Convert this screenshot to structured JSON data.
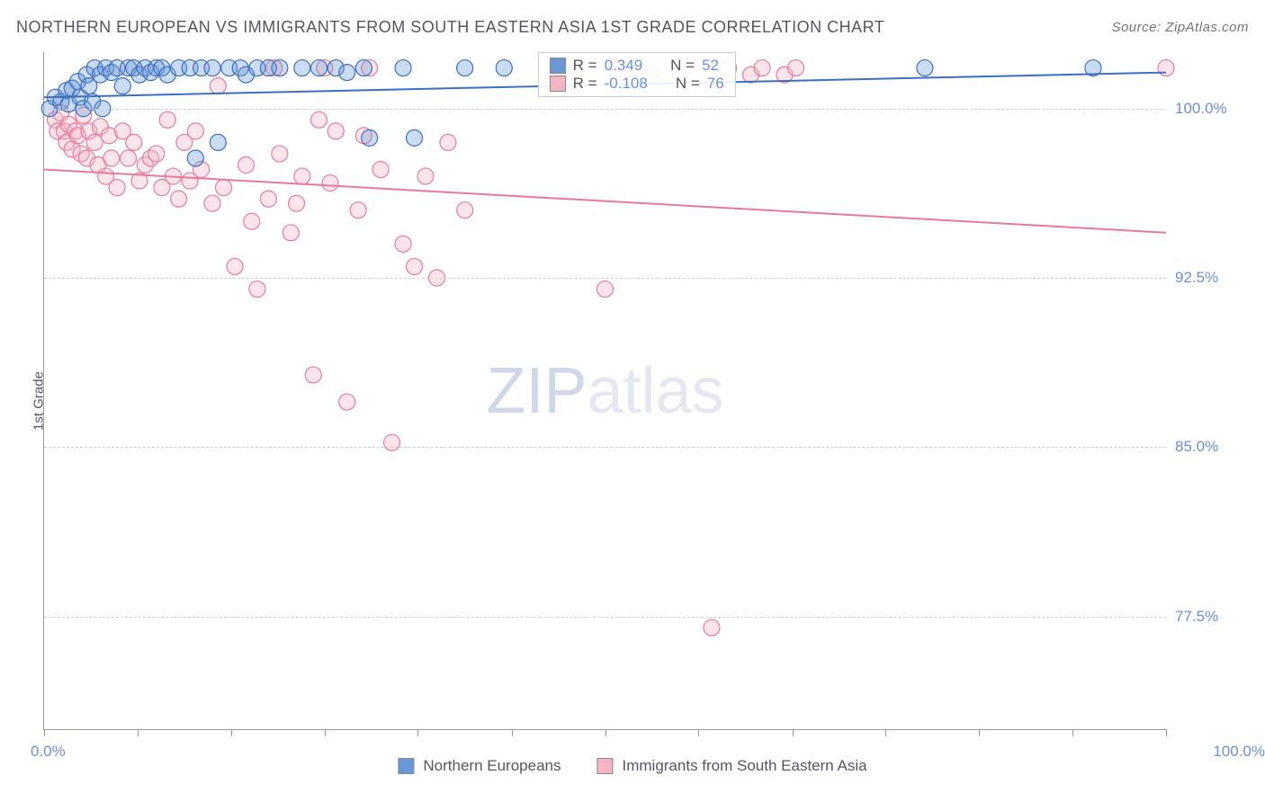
{
  "title": "NORTHERN EUROPEAN VS IMMIGRANTS FROM SOUTH EASTERN ASIA 1ST GRADE CORRELATION CHART",
  "source_label": "Source: ZipAtlas.com",
  "y_axis_label": "1st Grade",
  "watermark_a": "ZIP",
  "watermark_b": "atlas",
  "chart": {
    "type": "scatter",
    "xlim": [
      0,
      100
    ],
    "ylim": [
      72.5,
      102.5
    ],
    "x_origin_label": "0.0%",
    "x_max_label": "100.0%",
    "xtick_positions": [
      0,
      8.3,
      16.7,
      25,
      33.3,
      41.7,
      50,
      58.3,
      66.7,
      75,
      83.3,
      91.7,
      100
    ],
    "yticks": [
      {
        "value": 100.0,
        "label": "100.0%"
      },
      {
        "value": 92.5,
        "label": "92.5%"
      },
      {
        "value": 85.0,
        "label": "85.0%"
      },
      {
        "value": 77.5,
        "label": "77.5%"
      }
    ],
    "grid_color": "#cccccc",
    "axis_color": "#999999",
    "background_color": "#ffffff",
    "marker_radius": 9,
    "marker_stroke_width": 1.2,
    "marker_fill_opacity": 0.35,
    "trend_line_width": 2
  },
  "series": {
    "blue": {
      "label": "Northern Europeans",
      "fill_color": "#6b97d6",
      "stroke_color": "#3b6fc0",
      "R_label": "R =",
      "R_value": "0.349",
      "N_label": "N =",
      "N_value": "52",
      "trend": {
        "x1": 0,
        "y1": 100.5,
        "x2": 100,
        "y2": 101.6
      },
      "points": [
        [
          0.5,
          100.0
        ],
        [
          1.0,
          100.5
        ],
        [
          1.5,
          100.3
        ],
        [
          2.0,
          100.8
        ],
        [
          2.2,
          100.2
        ],
        [
          2.5,
          100.9
        ],
        [
          3.0,
          101.2
        ],
        [
          3.2,
          100.5
        ],
        [
          3.5,
          100.0
        ],
        [
          3.8,
          101.5
        ],
        [
          4.0,
          101.0
        ],
        [
          4.3,
          100.3
        ],
        [
          4.5,
          101.8
        ],
        [
          5.0,
          101.5
        ],
        [
          5.2,
          100.0
        ],
        [
          5.5,
          101.8
        ],
        [
          6.0,
          101.6
        ],
        [
          6.5,
          101.8
        ],
        [
          7.0,
          101.0
        ],
        [
          7.5,
          101.8
        ],
        [
          8.0,
          101.8
        ],
        [
          8.5,
          101.5
        ],
        [
          9.0,
          101.8
        ],
        [
          9.5,
          101.6
        ],
        [
          10.0,
          101.8
        ],
        [
          10.5,
          101.8
        ],
        [
          11.0,
          101.5
        ],
        [
          12.0,
          101.8
        ],
        [
          13.0,
          101.8
        ],
        [
          13.5,
          97.8
        ],
        [
          14.0,
          101.8
        ],
        [
          15.0,
          101.8
        ],
        [
          15.5,
          98.5
        ],
        [
          16.5,
          101.8
        ],
        [
          17.5,
          101.8
        ],
        [
          18.0,
          101.5
        ],
        [
          19.0,
          101.8
        ],
        [
          20.0,
          101.8
        ],
        [
          21.0,
          101.8
        ],
        [
          23.0,
          101.8
        ],
        [
          24.5,
          101.8
        ],
        [
          26.0,
          101.8
        ],
        [
          27.0,
          101.6
        ],
        [
          28.5,
          101.8
        ],
        [
          29.0,
          98.7
        ],
        [
          32.0,
          101.8
        ],
        [
          33.0,
          98.7
        ],
        [
          37.5,
          101.8
        ],
        [
          41.0,
          101.8
        ],
        [
          46.0,
          101.8
        ],
        [
          78.5,
          101.8
        ],
        [
          93.5,
          101.8
        ]
      ]
    },
    "pink": {
      "label": "Immigrants from South Eastern Asia",
      "fill_color": "#f4b5c5",
      "stroke_color": "#e67a9c",
      "R_label": "R =",
      "R_value": "-0.108",
      "N_label": "N =",
      "N_value": "76",
      "trend": {
        "x1": 0,
        "y1": 97.3,
        "x2": 100,
        "y2": 94.5
      },
      "points": [
        [
          1.0,
          99.5
        ],
        [
          1.2,
          99.0
        ],
        [
          1.5,
          99.8
        ],
        [
          1.8,
          99.0
        ],
        [
          2.0,
          98.5
        ],
        [
          2.2,
          99.3
        ],
        [
          2.5,
          98.2
        ],
        [
          2.8,
          99.0
        ],
        [
          3.0,
          98.8
        ],
        [
          3.3,
          98.0
        ],
        [
          3.5,
          99.7
        ],
        [
          3.8,
          97.8
        ],
        [
          4.0,
          99.0
        ],
        [
          4.5,
          98.5
        ],
        [
          4.8,
          97.5
        ],
        [
          5.0,
          99.2
        ],
        [
          5.5,
          97.0
        ],
        [
          5.8,
          98.8
        ],
        [
          6.0,
          97.8
        ],
        [
          6.5,
          96.5
        ],
        [
          7.0,
          99.0
        ],
        [
          7.5,
          97.8
        ],
        [
          8.0,
          98.5
        ],
        [
          8.5,
          96.8
        ],
        [
          9.0,
          97.5
        ],
        [
          9.5,
          97.8
        ],
        [
          10.0,
          98.0
        ],
        [
          10.5,
          96.5
        ],
        [
          11.0,
          99.5
        ],
        [
          11.5,
          97.0
        ],
        [
          12.0,
          96.0
        ],
        [
          12.5,
          98.5
        ],
        [
          13.0,
          96.8
        ],
        [
          13.5,
          99.0
        ],
        [
          14.0,
          97.3
        ],
        [
          15.0,
          95.8
        ],
        [
          15.5,
          101.0
        ],
        [
          16.0,
          96.5
        ],
        [
          17.0,
          93.0
        ],
        [
          18.0,
          97.5
        ],
        [
          18.5,
          95.0
        ],
        [
          19.0,
          92.0
        ],
        [
          20.0,
          96.0
        ],
        [
          20.5,
          101.8
        ],
        [
          21.0,
          98.0
        ],
        [
          22.0,
          94.5
        ],
        [
          22.5,
          95.8
        ],
        [
          23.0,
          97.0
        ],
        [
          24.0,
          88.2
        ],
        [
          24.5,
          99.5
        ],
        [
          25.0,
          101.8
        ],
        [
          25.5,
          96.7
        ],
        [
          26.0,
          99.0
        ],
        [
          27.0,
          87.0
        ],
        [
          28.0,
          95.5
        ],
        [
          28.5,
          98.8
        ],
        [
          29.0,
          101.8
        ],
        [
          30.0,
          97.3
        ],
        [
          31.0,
          85.2
        ],
        [
          32.0,
          94.0
        ],
        [
          33.0,
          93.0
        ],
        [
          34.0,
          97.0
        ],
        [
          35.0,
          92.5
        ],
        [
          36.0,
          98.5
        ],
        [
          37.5,
          95.5
        ],
        [
          50.0,
          92.0
        ],
        [
          51.0,
          101.8
        ],
        [
          54.0,
          101.5
        ],
        [
          56.5,
          101.8
        ],
        [
          59.5,
          77.0
        ],
        [
          61.0,
          101.8
        ],
        [
          63.0,
          101.5
        ],
        [
          64.0,
          101.8
        ],
        [
          66.0,
          101.5
        ],
        [
          67.0,
          101.8
        ],
        [
          100.0,
          101.8
        ]
      ]
    }
  }
}
